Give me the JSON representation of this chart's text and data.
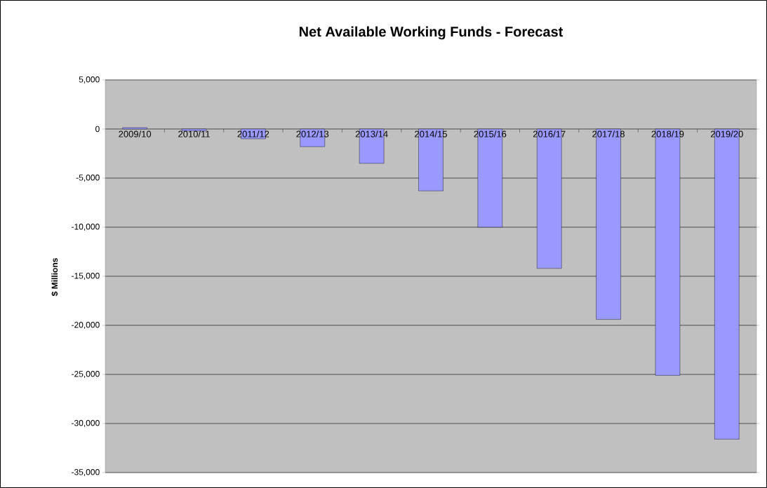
{
  "chart_data": {
    "type": "bar",
    "title": "Net Available Working Funds - Forecast",
    "ylabel": "$ Millions",
    "categories": [
      "2009/10",
      "2010/11",
      "2011/12",
      "2012/13",
      "2013/14",
      "2014/15",
      "2015/16",
      "2016/17",
      "2017/18",
      "2018/19",
      "2019/20"
    ],
    "values": [
      150,
      -200,
      -1000,
      -1800,
      -3500,
      -6300,
      -10000,
      -14200,
      -19400,
      -25100,
      -31600
    ],
    "color": "#9999ff",
    "ylim": [
      -35000,
      5000
    ],
    "yticks": [
      {
        "value": -35000,
        "label": "-35,000"
      },
      {
        "value": -30000,
        "label": "-30,000"
      },
      {
        "value": -25000,
        "label": "-25,000"
      },
      {
        "value": -20000,
        "label": "-20,000"
      },
      {
        "value": -15000,
        "label": "-15,000"
      },
      {
        "value": -10000,
        "label": "-10,000"
      },
      {
        "value": -5000,
        "label": "-5,000"
      },
      {
        "value": 0,
        "label": "0"
      },
      {
        "value": 5000,
        "label": "5,000"
      }
    ],
    "grid": true
  }
}
